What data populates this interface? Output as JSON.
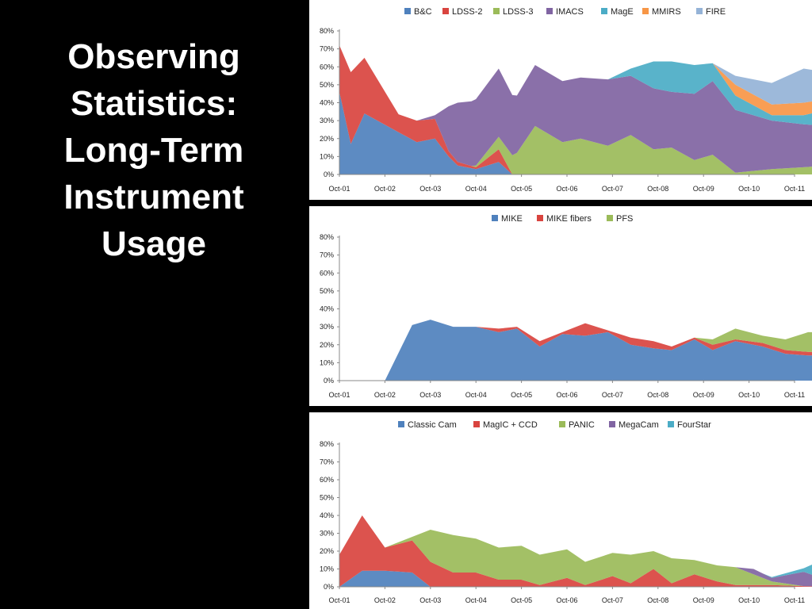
{
  "slide": {
    "title_lines": [
      "Observing",
      "Statistics:",
      "Long-Term",
      "Instrument",
      "Usage"
    ]
  },
  "chart_data": [
    {
      "type": "area",
      "stacked": true,
      "x": [
        "Oct-01",
        "Oct-02",
        "Oct-03",
        "Oct-04",
        "Oct-05",
        "Oct-06",
        "Oct-07",
        "Oct-08",
        "Oct-09",
        "Oct-10",
        "Oct-11"
      ],
      "ylim": [
        0,
        0.8
      ],
      "yticks": [
        "0%",
        "10%",
        "20%",
        "30%",
        "40%",
        "50%",
        "60%",
        "70%",
        "80%"
      ],
      "legend_position": "top",
      "grid": false,
      "series": [
        {
          "name": "B&C",
          "color": "#4F81BD",
          "points": [
            [
              0,
              0.46
            ],
            [
              0.25,
              0.17
            ],
            [
              0.55,
              0.34
            ],
            [
              1.7,
              0.18
            ],
            [
              2.1,
              0.2
            ],
            [
              2.4,
              0.1
            ],
            [
              2.6,
              0.05
            ],
            [
              3.0,
              0.03
            ],
            [
              3.5,
              0.07
            ],
            [
              3.8,
              0
            ],
            [
              10.7,
              0
            ]
          ]
        },
        {
          "name": "LDSS-2",
          "color": "#D9443F",
          "points": [
            [
              0,
              0.26
            ],
            [
              0.25,
              0.4
            ],
            [
              0.55,
              0.31
            ],
            [
              1.3,
              0.1
            ],
            [
              1.7,
              0.12
            ],
            [
              2.1,
              0.11
            ],
            [
              2.4,
              0.03
            ],
            [
              2.6,
              0.02
            ],
            [
              3.0,
              0.01
            ],
            [
              3.5,
              0.07
            ],
            [
              3.8,
              0
            ],
            [
              10.7,
              0
            ]
          ]
        },
        {
          "name": "LDSS-3",
          "color": "#9BBB59",
          "points": [
            [
              0,
              0
            ],
            [
              2.9,
              0
            ],
            [
              3.0,
              0.01
            ],
            [
              3.5,
              0.07
            ],
            [
              3.9,
              0.12
            ],
            [
              4.3,
              0.27
            ],
            [
              4.9,
              0.18
            ],
            [
              5.3,
              0.2
            ],
            [
              5.9,
              0.16
            ],
            [
              6.4,
              0.22
            ],
            [
              6.9,
              0.14
            ],
            [
              7.3,
              0.15
            ],
            [
              7.8,
              0.08
            ],
            [
              8.2,
              0.11
            ],
            [
              8.7,
              0.01
            ],
            [
              9.5,
              0.03
            ],
            [
              10.2,
              0.04
            ],
            [
              10.7,
              0.05
            ]
          ]
        },
        {
          "name": "IMACS",
          "color": "#8064A2",
          "points": [
            [
              0,
              0
            ],
            [
              1.7,
              0
            ],
            [
              2.1,
              0.02
            ],
            [
              2.4,
              0.25
            ],
            [
              2.6,
              0.33
            ],
            [
              3.0,
              0.37
            ],
            [
              3.5,
              0.38
            ],
            [
              3.9,
              0.32
            ],
            [
              4.3,
              0.34
            ],
            [
              4.9,
              0.34
            ],
            [
              5.3,
              0.34
            ],
            [
              5.9,
              0.37
            ],
            [
              6.4,
              0.33
            ],
            [
              6.9,
              0.34
            ],
            [
              7.3,
              0.31
            ],
            [
              7.8,
              0.37
            ],
            [
              8.2,
              0.41
            ],
            [
              8.7,
              0.35
            ],
            [
              9.5,
              0.27
            ],
            [
              10.2,
              0.24
            ],
            [
              10.7,
              0.22
            ]
          ]
        },
        {
          "name": "MagE",
          "color": "#4BACC6",
          "points": [
            [
              0,
              0
            ],
            [
              5.9,
              0
            ],
            [
              6.4,
              0.04
            ],
            [
              6.9,
              0.15
            ],
            [
              7.3,
              0.17
            ],
            [
              7.8,
              0.16
            ],
            [
              8.2,
              0.1
            ],
            [
              8.7,
              0.08
            ],
            [
              9.5,
              0.03
            ],
            [
              10.2,
              0.05
            ],
            [
              10.7,
              0.09
            ]
          ]
        },
        {
          "name": "MMIRS",
          "color": "#F79646",
          "points": [
            [
              0,
              0
            ],
            [
              8.2,
              0
            ],
            [
              8.7,
              0.06
            ],
            [
              9.5,
              0.06
            ],
            [
              10.2,
              0.07
            ],
            [
              10.7,
              0.06
            ]
          ]
        },
        {
          "name": "FIRE",
          "color": "#95B3D7",
          "points": [
            [
              0,
              0
            ],
            [
              8.2,
              0
            ],
            [
              8.7,
              0.05
            ],
            [
              9.5,
              0.12
            ],
            [
              10.2,
              0.19
            ],
            [
              10.7,
              0.15
            ]
          ]
        }
      ]
    },
    {
      "type": "area",
      "stacked": true,
      "x": [
        "Oct-01",
        "Oct-02",
        "Oct-03",
        "Oct-04",
        "Oct-05",
        "Oct-06",
        "Oct-07",
        "Oct-08",
        "Oct-09",
        "Oct-10",
        "Oct-11"
      ],
      "ylim": [
        0,
        0.8
      ],
      "yticks": [
        "0%",
        "10%",
        "20%",
        "30%",
        "40%",
        "50%",
        "60%",
        "70%",
        "80%"
      ],
      "legend_position": "top",
      "grid": false,
      "series": [
        {
          "name": "MIKE",
          "color": "#4F81BD",
          "points": [
            [
              0,
              0
            ],
            [
              1,
              0
            ],
            [
              1.6,
              0.31
            ],
            [
              2,
              0.34
            ],
            [
              2.5,
              0.3
            ],
            [
              3,
              0.3
            ],
            [
              3.5,
              0.27
            ],
            [
              3.9,
              0.29
            ],
            [
              4.4,
              0.19
            ],
            [
              4.9,
              0.26
            ],
            [
              5.4,
              0.25
            ],
            [
              5.9,
              0.27
            ],
            [
              6.4,
              0.2
            ],
            [
              6.9,
              0.18
            ],
            [
              7.3,
              0.17
            ],
            [
              7.8,
              0.23
            ],
            [
              8.2,
              0.17
            ],
            [
              8.7,
              0.22
            ],
            [
              9.3,
              0.19
            ],
            [
              9.8,
              0.15
            ],
            [
              10.3,
              0.14
            ],
            [
              10.5,
              0.14
            ]
          ]
        },
        {
          "name": "MIKE fibers",
          "color": "#D9443F",
          "points": [
            [
              0,
              0
            ],
            [
              3,
              0
            ],
            [
              3.5,
              0.02
            ],
            [
              3.9,
              0.01
            ],
            [
              4.4,
              0.03
            ],
            [
              4.9,
              0.01
            ],
            [
              5.4,
              0.07
            ],
            [
              5.9,
              0.01
            ],
            [
              6.4,
              0.04
            ],
            [
              6.9,
              0.04
            ],
            [
              7.3,
              0.02
            ],
            [
              7.8,
              0.01
            ],
            [
              8.2,
              0.03
            ],
            [
              8.7,
              0.01
            ],
            [
              9.3,
              0.02
            ],
            [
              9.8,
              0.02
            ],
            [
              10.3,
              0.02
            ],
            [
              10.5,
              0.02
            ]
          ]
        },
        {
          "name": "PFS",
          "color": "#9BBB59",
          "points": [
            [
              0,
              0
            ],
            [
              7.8,
              0
            ],
            [
              8.2,
              0.03
            ],
            [
              8.7,
              0.06
            ],
            [
              9.3,
              0.04
            ],
            [
              9.8,
              0.06
            ],
            [
              10.3,
              0.11
            ],
            [
              10.5,
              0.11
            ]
          ]
        }
      ]
    },
    {
      "type": "area",
      "stacked": true,
      "x": [
        "Oct-01",
        "Oct-02",
        "Oct-03",
        "Oct-04",
        "Oct-05",
        "Oct-06",
        "Oct-07",
        "Oct-08",
        "Oct-09",
        "Oct-10",
        "Oct-11"
      ],
      "ylim": [
        0,
        0.8
      ],
      "yticks": [
        "0%",
        "10%",
        "20%",
        "30%",
        "40%",
        "50%",
        "60%",
        "70%",
        "80%"
      ],
      "legend_position": "top",
      "grid": false,
      "series": [
        {
          "name": "Classic Cam",
          "color": "#4F81BD",
          "points": [
            [
              0,
              0
            ],
            [
              0.5,
              0.09
            ],
            [
              1.0,
              0.09
            ],
            [
              1.6,
              0.08
            ],
            [
              2.0,
              0
            ],
            [
              10.7,
              0
            ]
          ]
        },
        {
          "name": "MagIC + CCD",
          "color": "#D9443F",
          "points": [
            [
              0,
              0.18
            ],
            [
              0.5,
              0.31
            ],
            [
              1.0,
              0.13
            ],
            [
              1.6,
              0.18
            ],
            [
              2.0,
              0.14
            ],
            [
              2.5,
              0.08
            ],
            [
              3.0,
              0.08
            ],
            [
              3.5,
              0.04
            ],
            [
              4.0,
              0.04
            ],
            [
              4.4,
              0.01
            ],
            [
              5.0,
              0.05
            ],
            [
              5.4,
              0.01
            ],
            [
              6.0,
              0.06
            ],
            [
              6.4,
              0.02
            ],
            [
              6.9,
              0.1
            ],
            [
              7.3,
              0.02
            ],
            [
              7.8,
              0.07
            ],
            [
              8.3,
              0.03
            ],
            [
              8.7,
              0.01
            ],
            [
              9.5,
              0.01
            ],
            [
              10.7,
              0
            ]
          ]
        },
        {
          "name": "PANIC",
          "color": "#9BBB59",
          "points": [
            [
              0,
              0
            ],
            [
              1.0,
              0
            ],
            [
              1.6,
              0.02
            ],
            [
              2.0,
              0.18
            ],
            [
              2.5,
              0.21
            ],
            [
              3.0,
              0.19
            ],
            [
              3.5,
              0.18
            ],
            [
              4.0,
              0.19
            ],
            [
              4.4,
              0.17
            ],
            [
              5.0,
              0.16
            ],
            [
              5.4,
              0.13
            ],
            [
              6.0,
              0.13
            ],
            [
              6.4,
              0.16
            ],
            [
              6.9,
              0.1
            ],
            [
              7.3,
              0.14
            ],
            [
              7.8,
              0.08
            ],
            [
              8.3,
              0.09
            ],
            [
              8.7,
              0.1
            ],
            [
              9.5,
              0.02
            ],
            [
              10.2,
              0
            ],
            [
              10.7,
              0
            ]
          ]
        },
        {
          "name": "MegaCam",
          "color": "#8064A2",
          "points": [
            [
              0,
              0
            ],
            [
              8.7,
              0
            ],
            [
              9.1,
              0.03
            ],
            [
              9.5,
              0.02
            ],
            [
              10.2,
              0.08
            ],
            [
              10.7,
              0.04
            ]
          ]
        },
        {
          "name": "FourStar",
          "color": "#4BACC6",
          "points": [
            [
              0,
              0
            ],
            [
              9.3,
              0
            ],
            [
              10.2,
              0.02
            ],
            [
              10.7,
              0.12
            ]
          ]
        }
      ]
    }
  ]
}
